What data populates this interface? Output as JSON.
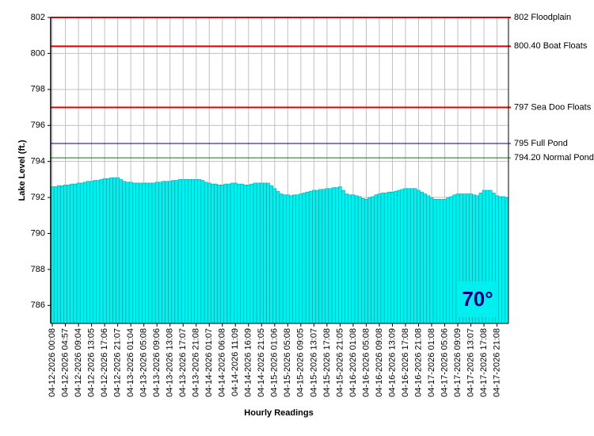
{
  "chart_data": {
    "type": "bar",
    "y_label": "Lake Level (ft.)",
    "x_label": "Hourly Readings",
    "annotation": "70°",
    "color": "#00f0f0",
    "ylim": [
      785,
      802
    ],
    "yticks": [
      786,
      788,
      790,
      792,
      794,
      796,
      798,
      800,
      802
    ],
    "grid": true,
    "reference_lines": [
      {
        "value": 802,
        "label": "802 Floodplain",
        "color": "#e00000"
      },
      {
        "value": 800.4,
        "label": "800.40 Boat Floats",
        "color": "#e00000"
      },
      {
        "value": 797,
        "label": "797 Sea Doo Floats",
        "color": "#e00000"
      },
      {
        "value": 795,
        "label": "795 Full Pond",
        "color": "#000080"
      },
      {
        "value": 794.2,
        "label": "794.20 Normal Pond",
        "color": "#008000"
      }
    ],
    "categories": [
      "04-12-2026 00:08",
      null,
      null,
      null,
      "04-12-2026 04:57",
      null,
      null,
      null,
      "04-12-2026 09:04",
      null,
      null,
      null,
      "04-12-2026 13:05",
      null,
      null,
      null,
      "04-12-2026 17:06",
      null,
      null,
      null,
      "04-12-2026 21:07",
      null,
      null,
      null,
      "04-13-2026 01:04",
      null,
      null,
      null,
      "04-13-2026 05:08",
      null,
      null,
      null,
      "04-13-2026 09:06",
      null,
      null,
      null,
      "04-13-2026 13:08",
      null,
      null,
      null,
      "04-13-2026 17:07",
      null,
      null,
      null,
      "04-13-2026 21:08",
      null,
      null,
      null,
      "04-14-2026 01:07",
      null,
      null,
      null,
      "04-14-2026 06:08",
      null,
      null,
      null,
      "04-14-2026 11:09",
      null,
      null,
      null,
      "04-14-2026 16:09",
      null,
      null,
      null,
      "04-14-2026 21:05",
      null,
      null,
      null,
      "04-15-2026 01:06",
      null,
      null,
      null,
      "04-15-2026 05:08",
      null,
      null,
      null,
      "04-15-2026 09:05",
      null,
      null,
      null,
      "04-15-2026 13:07",
      null,
      null,
      null,
      "04-15-2026 17:08",
      null,
      null,
      null,
      "04-15-2026 21:05",
      null,
      null,
      null,
      "04-16-2026 01:08",
      null,
      null,
      null,
      "04-16-2026 05:08",
      null,
      null,
      null,
      "04-16-2026 09:08",
      null,
      null,
      null,
      "04-16-2026 13:09",
      null,
      null,
      null,
      "04-16-2026 17:08",
      null,
      null,
      null,
      "04-16-2026 21:08",
      null,
      null,
      null,
      "04-17-2026 01:08",
      null,
      null,
      null,
      "04-17-2026 05:06",
      null,
      null,
      null,
      "04-17-2026 09:09",
      null,
      null,
      null,
      "04-17-2026 13:07",
      null,
      null,
      null,
      "04-17-2026 17:08",
      null,
      null,
      null,
      "04-17-2026 21:08",
      null,
      null,
      null
    ],
    "values": [
      792.6,
      792.6,
      792.65,
      792.65,
      792.7,
      792.7,
      792.75,
      792.75,
      792.8,
      792.8,
      792.85,
      792.9,
      792.9,
      792.95,
      792.95,
      793.0,
      793.05,
      793.05,
      793.1,
      793.1,
      793.1,
      793.0,
      792.9,
      792.85,
      792.85,
      792.8,
      792.8,
      792.8,
      792.8,
      792.8,
      792.8,
      792.8,
      792.85,
      792.85,
      792.9,
      792.9,
      792.9,
      792.95,
      792.95,
      793.0,
      793.0,
      793.0,
      793.0,
      793.0,
      793.0,
      793.0,
      792.95,
      792.85,
      792.8,
      792.75,
      792.75,
      792.7,
      792.7,
      792.75,
      792.75,
      792.8,
      792.8,
      792.75,
      792.75,
      792.7,
      792.7,
      792.75,
      792.8,
      792.8,
      792.8,
      792.8,
      792.8,
      792.65,
      792.5,
      792.35,
      792.2,
      792.15,
      792.15,
      792.1,
      792.15,
      792.15,
      792.2,
      792.25,
      792.3,
      792.35,
      792.4,
      792.4,
      792.45,
      792.45,
      792.5,
      792.5,
      792.55,
      792.55,
      792.6,
      792.4,
      792.2,
      792.15,
      792.15,
      792.1,
      792.05,
      791.95,
      791.9,
      792.0,
      792.05,
      792.15,
      792.2,
      792.25,
      792.25,
      792.3,
      792.3,
      792.35,
      792.4,
      792.45,
      792.5,
      792.5,
      792.5,
      792.5,
      792.4,
      792.3,
      792.2,
      792.1,
      792.0,
      791.9,
      791.9,
      791.9,
      791.9,
      792.0,
      792.05,
      792.15,
      792.2,
      792.2,
      792.2,
      792.2,
      792.2,
      792.15,
      792.1,
      792.25,
      792.4,
      792.4,
      792.4,
      792.25,
      792.1,
      792.05,
      792.05,
      792.0
    ]
  }
}
